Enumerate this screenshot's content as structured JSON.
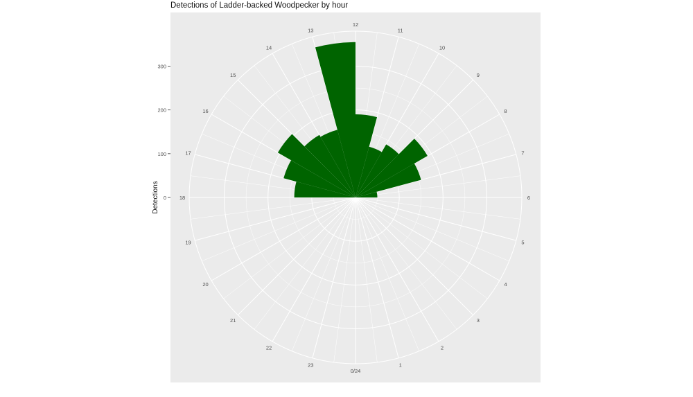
{
  "chart_data": {
    "type": "bar",
    "coord": "polar",
    "title": "Detections of Ladder-backed Woodpecker by hour",
    "xlabel": "",
    "ylabel": "Detections",
    "y_ticks": [
      0,
      100,
      200,
      300
    ],
    "ylim": [
      0,
      380
    ],
    "hour_labels": [
      "0/24",
      "1",
      "2",
      "3",
      "4",
      "5",
      "6",
      "7",
      "8",
      "9",
      "10",
      "11",
      "12",
      "13",
      "14",
      "15",
      "16",
      "17",
      "18",
      "19",
      "20",
      "21",
      "22",
      "23"
    ],
    "categories": [
      6,
      7,
      8,
      9,
      10,
      11,
      12,
      13,
      14,
      15,
      16,
      17
    ],
    "values": [
      50,
      155,
      190,
      140,
      120,
      190,
      355,
      160,
      165,
      205,
      170,
      140
    ],
    "bar_color": "#006400",
    "panel_color": "#ebebeb",
    "grid_color": "#ffffff",
    "grid": true
  }
}
